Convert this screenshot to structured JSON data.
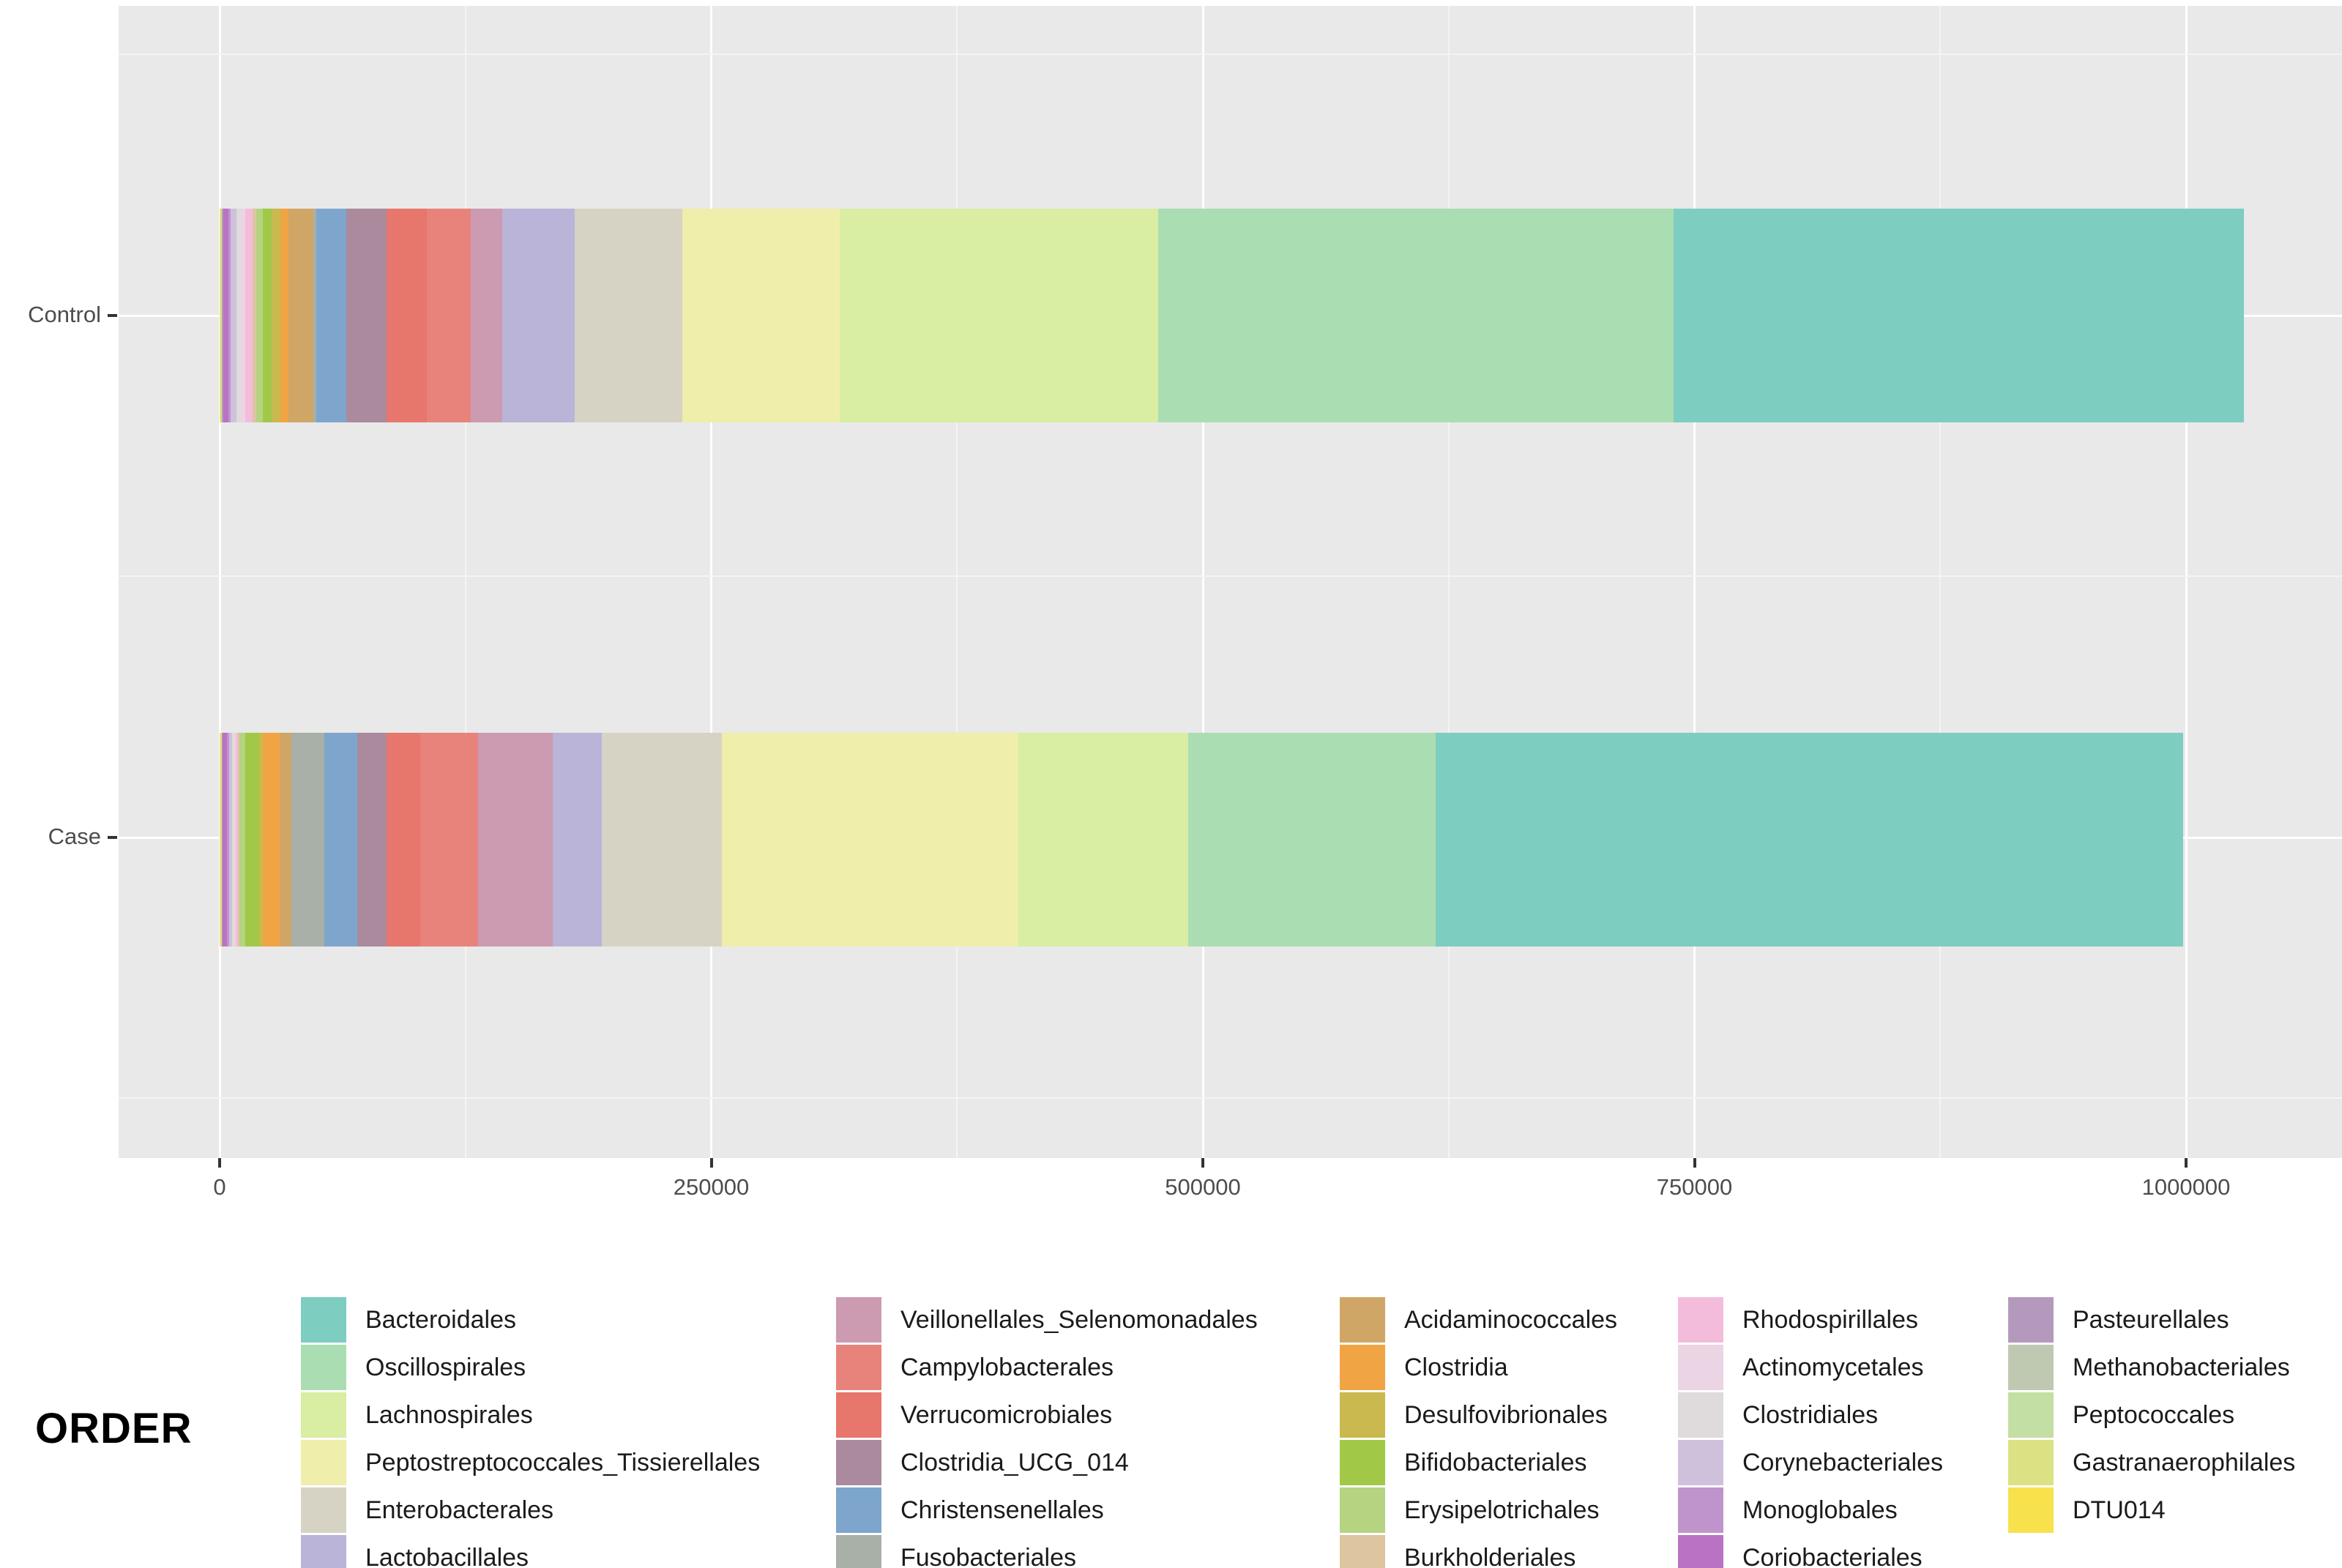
{
  "chart_data": {
    "type": "bar",
    "orientation": "horizontal",
    "stacked": true,
    "title": "",
    "xlabel": "",
    "ylabel": "",
    "categories": [
      "Control",
      "Case"
    ],
    "x_axis": {
      "ticks": [
        0,
        250000,
        500000,
        750000,
        1000000
      ],
      "tick_labels": [
        "0",
        "250000",
        "500000",
        "750000",
        "1000000"
      ],
      "minor_ticks": [
        125000,
        375000,
        625000,
        875000
      ],
      "range": [
        0,
        1080000
      ]
    },
    "grid": true,
    "legend_position": "bottom",
    "stack_note": "segments stacked left-to-right in reverse legend order (DTU014 first, Bacteroidales last)",
    "series": [
      {
        "name": "Bacteroidales",
        "color": "#7dcdc0",
        "values": [
          290000,
          380200
        ]
      },
      {
        "name": "Oscillospirales",
        "color": "#aaddb1",
        "values": [
          262000,
          125900
        ]
      },
      {
        "name": "Lachnospirales",
        "color": "#d9eda3",
        "values": [
          162000,
          86400
        ]
      },
      {
        "name": "Peptostreptococcales_Tissierellales",
        "color": "#efeeab",
        "values": [
          80000,
          150800
        ]
      },
      {
        "name": "Enterobacterales",
        "color": "#d7d3c4",
        "values": [
          54700,
          60700
        ]
      },
      {
        "name": "Lactobacillales",
        "color": "#bab4d8",
        "values": [
          37000,
          25200
        ]
      },
      {
        "name": "Veillonellales_Selenomonadales",
        "color": "#cc9bb1",
        "values": [
          15900,
          37800
        ]
      },
      {
        "name": "Campylobacterales",
        "color": "#e8837b",
        "values": [
          22300,
          29700
        ]
      },
      {
        "name": "Verrucomicrobiales",
        "color": "#e7766d",
        "values": [
          20700,
          16900
        ]
      },
      {
        "name": "Clostridia_UCG_014",
        "color": "#aa8a9c",
        "values": [
          20400,
          14800
        ]
      },
      {
        "name": "Christensenellales",
        "color": "#7ea6cd",
        "values": [
          15300,
          16900
        ]
      },
      {
        "name": "Fusobacteriales",
        "color": "#a8b0a8",
        "values": [
          1500,
          16800
        ]
      },
      {
        "name": "Acidaminococcales",
        "color": "#d0a667",
        "values": [
          12500,
          6100
        ]
      },
      {
        "name": "Clostridia",
        "color": "#f1a444",
        "values": [
          4300,
          8200
        ]
      },
      {
        "name": "Desulfovibrionales",
        "color": "#c9b94e",
        "values": [
          4200,
          2000
        ]
      },
      {
        "name": "Bifidobacteriales",
        "color": "#a1c947",
        "values": [
          4500,
          7000
        ]
      },
      {
        "name": "Erysipelotrichales",
        "color": "#b5d381",
        "values": [
          3600,
          3000
        ]
      },
      {
        "name": "Burkholderiales",
        "color": "#ddc5a0",
        "values": [
          1800,
          800
        ]
      },
      {
        "name": "Rhodospirillales",
        "color": "#f4bcdb",
        "values": [
          3500,
          1000
        ]
      },
      {
        "name": "Actinomycetales",
        "color": "#ebd4e3",
        "values": [
          2400,
          900
        ]
      },
      {
        "name": "Clostridiales",
        "color": "#dfdadb",
        "values": [
          2300,
          1200
        ]
      },
      {
        "name": "Corynebacteriales",
        "color": "#cfc0dc",
        "values": [
          2800,
          1500
        ]
      },
      {
        "name": "Monoglobales",
        "color": "#bf94cc",
        "values": [
          1200,
          900
        ]
      },
      {
        "name": "Coriobacteriales",
        "color": "#ba73c4",
        "values": [
          2500,
          2500
        ]
      },
      {
        "name": "Pasteurellales",
        "color": "#b599bd",
        "values": [
          700,
          200
        ]
      },
      {
        "name": "Methanobacteriales",
        "color": "#bfc9b2",
        "values": [
          300,
          200
        ]
      },
      {
        "name": "Peptococcales",
        "color": "#c4dfa3",
        "values": [
          400,
          300
        ]
      },
      {
        "name": "Gastranaerophilales",
        "color": "#dbe283",
        "values": [
          300,
          300
        ]
      },
      {
        "name": "DTU014",
        "color": "#f7e14d",
        "values": [
          300,
          400
        ]
      }
    ]
  },
  "legend": {
    "title": "ORDER",
    "columns": [
      [
        "Bacteroidales",
        "Oscillospirales",
        "Lachnospirales",
        "Peptostreptococcales_Tissierellales",
        "Enterobacterales",
        "Lactobacillales"
      ],
      [
        "Veillonellales_Selenomonadales",
        "Campylobacterales",
        "Verrucomicrobiales",
        "Clostridia_UCG_014",
        "Christensenellales",
        "Fusobacteriales"
      ],
      [
        "Acidaminococcales",
        "Clostridia",
        "Desulfovibrionales",
        "Bifidobacteriales",
        "Erysipelotrichales",
        "Burkholderiales"
      ],
      [
        "Rhodospirillales",
        "Actinomycetales",
        "Clostridiales",
        "Corynebacteriales",
        "Monoglobales",
        "Coriobacteriales"
      ],
      [
        "Pasteurellales",
        "Methanobacteriales",
        "Peptococcales",
        "Gastranaerophilales",
        "DTU014"
      ]
    ]
  },
  "colors": {
    "panel_background": "#e9e9e9",
    "gridline_major": "#ffffff",
    "axis_text": "#4d4d4d"
  }
}
